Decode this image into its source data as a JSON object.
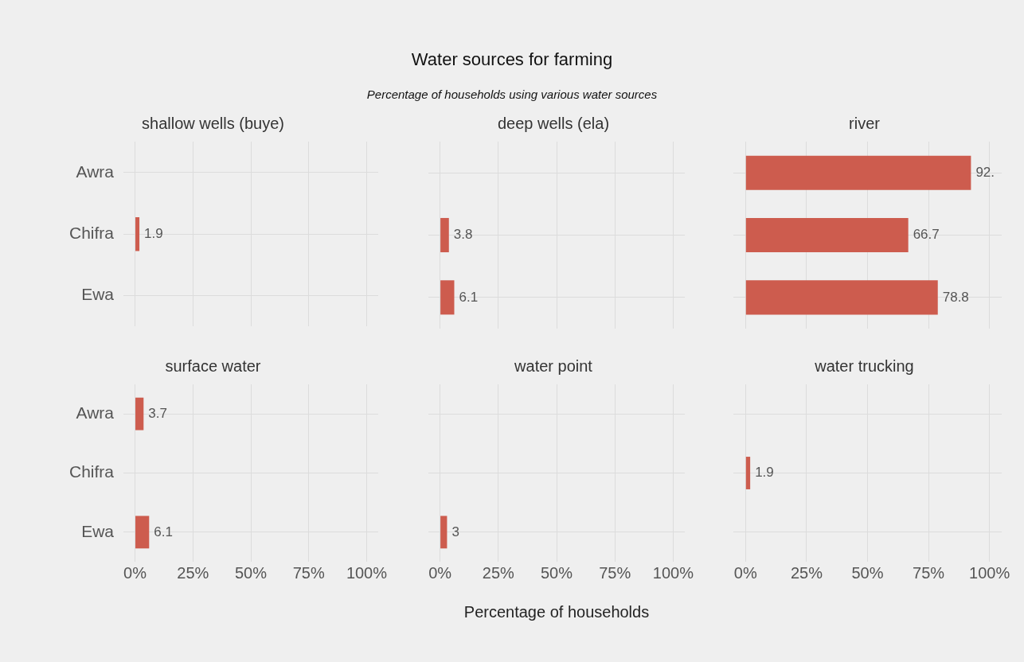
{
  "chart_data": [
    {
      "type": "bar",
      "orientation": "horizontal",
      "title": "shallow wells (buye)",
      "annotations": [
        "Water sources for farming",
        "Percentage of households using various water sources"
      ],
      "categories": [
        "Awra",
        "Chifra",
        "Ewa"
      ],
      "values": [
        null,
        1.9,
        null
      ],
      "value_labels": [
        null,
        "1.9",
        null
      ],
      "color": "#cd5c4e",
      "xlim": [
        -5,
        105
      ],
      "xticks": [
        {
          "value": 0,
          "label": null
        },
        {
          "value": 25,
          "label": null
        },
        {
          "value": 50,
          "label": null
        },
        {
          "value": 75,
          "label": null
        },
        {
          "value": 100,
          "label": null
        }
      ],
      "grid": true,
      "legend": false,
      "tick_labels": "y"
    },
    {
      "type": "bar",
      "orientation": "horizontal",
      "title": "deep wells (ela)",
      "categories": [
        null,
        null,
        null
      ],
      "values": [
        null,
        3.8,
        6.1
      ],
      "value_labels": [
        null,
        "3.8",
        "6.1"
      ],
      "color": "#cd5c4e",
      "xlim": [
        -5,
        105
      ],
      "xticks": [
        {
          "value": 0,
          "label": null
        },
        {
          "value": 25,
          "label": null
        },
        {
          "value": 50,
          "label": null
        },
        {
          "value": 75,
          "label": null
        },
        {
          "value": 100,
          "label": null
        }
      ],
      "grid": true,
      "legend": false,
      "tick_labels": false
    },
    {
      "type": "bar",
      "orientation": "horizontal",
      "title": "river",
      "categories": [
        null,
        null,
        null
      ],
      "values": [
        92.4,
        66.7,
        78.8
      ],
      "value_labels": [
        "92.",
        "66.7",
        "78.8"
      ],
      "color": "#cd5c4e",
      "xlim": [
        -5,
        105
      ],
      "xticks": [
        {
          "value": 0,
          "label": null
        },
        {
          "value": 25,
          "label": null
        },
        {
          "value": 50,
          "label": null
        },
        {
          "value": 75,
          "label": null
        },
        {
          "value": 100,
          "label": null
        }
      ],
      "grid": true,
      "legend": false,
      "tick_labels": false
    },
    {
      "type": "bar",
      "orientation": "horizontal",
      "title": "surface water",
      "categories": [
        "Awra",
        "Chifra",
        "Ewa"
      ],
      "values": [
        3.7,
        null,
        6.1
      ],
      "value_labels": [
        "3.7",
        null,
        "6.1"
      ],
      "color": "#cd5c4e",
      "xlim": [
        -5,
        105
      ],
      "xticks": [
        {
          "value": 0,
          "label": "0%"
        },
        {
          "value": 25,
          "label": "25%"
        },
        {
          "value": 50,
          "label": "50%"
        },
        {
          "value": 75,
          "label": "75%"
        },
        {
          "value": 100,
          "label": "100%"
        }
      ],
      "grid": true,
      "legend": false
    },
    {
      "type": "bar",
      "orientation": "horizontal",
      "title": "water point",
      "xlabel": "Percentage of households",
      "categories": [
        null,
        null,
        null
      ],
      "values": [
        null,
        null,
        3
      ],
      "value_labels": [
        null,
        null,
        "3"
      ],
      "color": "#cd5c4e",
      "xlim": [
        -5,
        105
      ],
      "xticks": [
        {
          "value": 0,
          "label": "0%"
        },
        {
          "value": 25,
          "label": "25%"
        },
        {
          "value": 50,
          "label": "50%"
        },
        {
          "value": 75,
          "label": "75%"
        },
        {
          "value": 100,
          "label": "100%"
        }
      ],
      "grid": true,
      "legend": false,
      "tick_labels": "x"
    },
    {
      "type": "bar",
      "orientation": "horizontal",
      "title": "water trucking",
      "categories": [
        null,
        null,
        null
      ],
      "values": [
        null,
        1.9,
        null
      ],
      "value_labels": [
        null,
        "1.9",
        null
      ],
      "color": "#cd5c4e",
      "xlim": [
        -5,
        105
      ],
      "xticks": [
        {
          "value": 0,
          "label": "0%"
        },
        {
          "value": 25,
          "label": "25%"
        },
        {
          "value": 50,
          "label": "50%"
        },
        {
          "value": 75,
          "label": "75%"
        },
        {
          "value": 100,
          "label": "100%"
        }
      ],
      "grid": true,
      "legend": false,
      "tick_labels": "x"
    }
  ]
}
